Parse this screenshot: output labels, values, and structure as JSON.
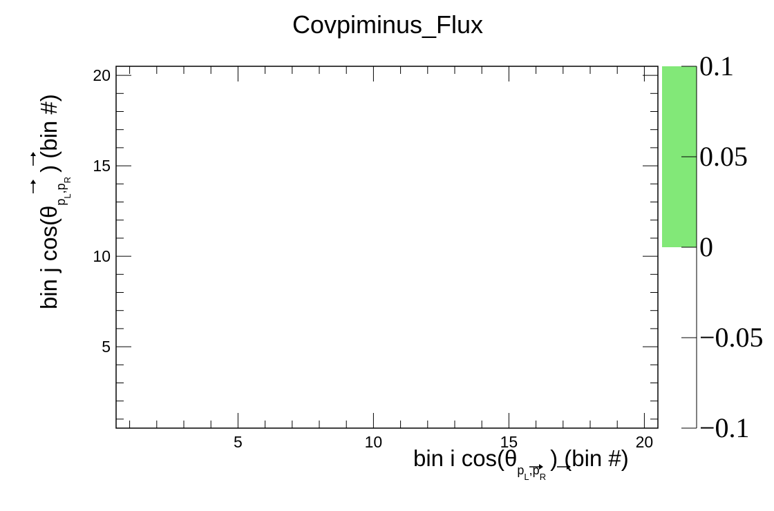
{
  "chart_data": {
    "type": "heatmap",
    "title": "Covpiminus_Flux",
    "xlabel": {
      "prefix": "bin i cos(θ",
      "sub": "p",
      "sub_l": "L",
      "sub_sep": ",",
      "sub_r": "R",
      "suffix": ") (bin #)"
    },
    "ylabel": {
      "prefix": "bin j cos(θ",
      "sub": "p",
      "sub_l": "L",
      "sub_sep": ",",
      "sub_r": "R",
      "suffix": ") (bin #)"
    },
    "xlim": [
      0.5,
      20.5
    ],
    "ylim": [
      0.5,
      20.5
    ],
    "x_ticks": [
      5,
      10,
      15,
      20
    ],
    "y_ticks": [
      5,
      10,
      15,
      20
    ],
    "z_range": [
      -0.1,
      0.1
    ],
    "z_ticks": [
      "0.1",
      "0.05",
      "0",
      "−0.05",
      "−0.1"
    ],
    "z_tick_values": [
      0.1,
      0.05,
      0,
      -0.05,
      -0.1
    ],
    "palette_fill": {
      "from": 0,
      "to": 0.1,
      "color": "#82e878"
    },
    "cells": [],
    "grid": false
  }
}
